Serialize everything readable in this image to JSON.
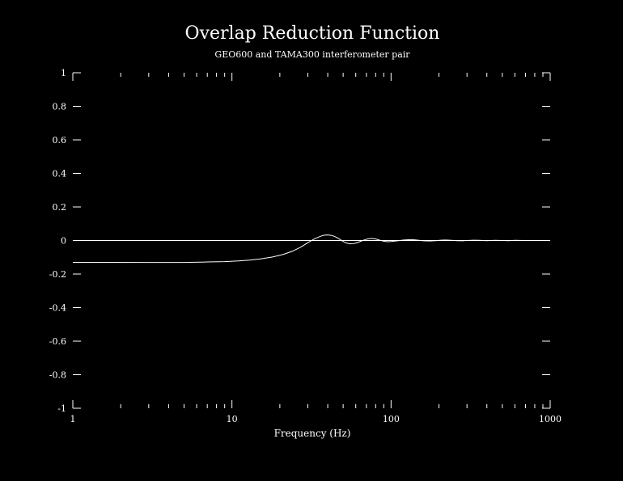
{
  "chart_data": {
    "type": "line",
    "title": "Overlap Reduction Function",
    "subtitle": "GEO600 and TAMA300 interferometer pair",
    "xlabel": "Frequency (Hz)",
    "ylabel": "",
    "xscale": "log",
    "xlim": [
      1,
      1000
    ],
    "ylim": [
      -1,
      1
    ],
    "grid": false,
    "legend": "none",
    "xticks": [
      1,
      10,
      100,
      1000
    ],
    "xtick_labels": [
      "1",
      "10",
      "100",
      "1000"
    ],
    "yticks": [
      1,
      0.8,
      0.6,
      0.4,
      0.2,
      0,
      -0.2,
      -0.4,
      -0.6,
      -0.8,
      -1
    ],
    "ytick_labels": [
      "1",
      "0.8",
      "0.6",
      "0.4",
      "0.2",
      "0",
      "-0.2",
      "-0.4",
      "-0.6",
      "-0.8",
      "-1"
    ],
    "colors": {
      "background": "#000000",
      "foreground": "#ffffff"
    },
    "series": [
      {
        "x": [
          1,
          2,
          3,
          5,
          7,
          9,
          11,
          13,
          15,
          18,
          21,
          24,
          27,
          30,
          33,
          36,
          38,
          40,
          42,
          44,
          46,
          48,
          50,
          52,
          55,
          58,
          61,
          64,
          68,
          72,
          76,
          80,
          85,
          90,
          95,
          100,
          110,
          120,
          130,
          140,
          150,
          160,
          175,
          190,
          205,
          220,
          240,
          260,
          280,
          300,
          330,
          360,
          400,
          450,
          500,
          550,
          600,
          700,
          800,
          900,
          1000
        ],
        "y": [
          -0.13,
          -0.13,
          -0.131,
          -0.131,
          -0.128,
          -0.126,
          -0.122,
          -0.117,
          -0.11,
          -0.098,
          -0.083,
          -0.064,
          -0.04,
          -0.013,
          0.01,
          0.025,
          0.032,
          0.033,
          0.031,
          0.025,
          0.016,
          0.005,
          -0.006,
          -0.014,
          -0.02,
          -0.019,
          -0.014,
          -0.006,
          0.004,
          0.01,
          0.012,
          0.009,
          0.002,
          -0.004,
          -0.007,
          -0.006,
          -0.002,
          0.003,
          0.005,
          0.004,
          0.001,
          -0.002,
          -0.003,
          -0.001,
          0.002,
          0.003,
          0.001,
          -0.001,
          -0.002,
          0.0,
          0.002,
          0.001,
          -0.001,
          0.001,
          0.0,
          -0.001,
          0.001,
          0.0,
          0.0,
          0.0,
          0.0
        ]
      }
    ]
  }
}
